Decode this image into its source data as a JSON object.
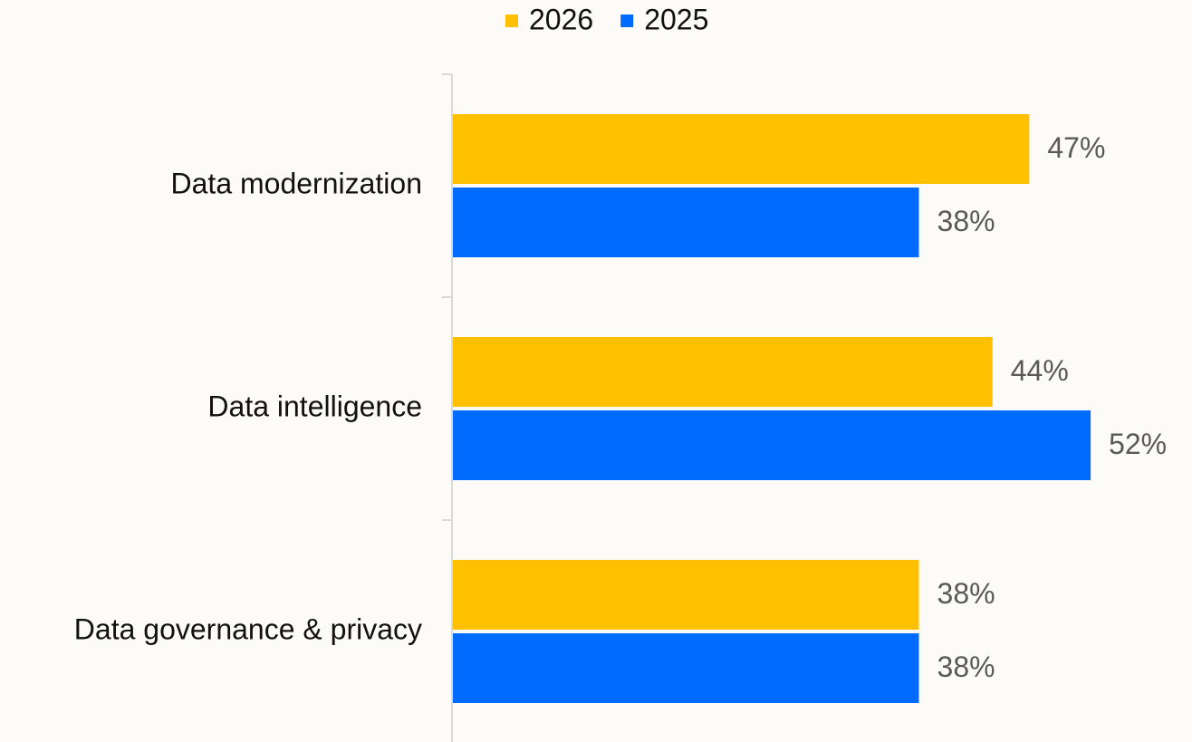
{
  "chart_data": {
    "type": "hbar",
    "categories": [
      "Data modernization",
      "Data intelligence",
      "Data governance & privacy"
    ],
    "series": [
      {
        "name": "2026",
        "color": "#ffc000",
        "values": [
          47,
          44,
          38
        ],
        "value_labels": [
          "47%",
          "44%",
          "38%"
        ]
      },
      {
        "name": "2025",
        "color": "#006cff",
        "values": [
          38,
          52,
          38
        ],
        "value_labels": [
          "38%",
          "52%",
          "38%"
        ]
      }
    ],
    "legend": "top"
  }
}
